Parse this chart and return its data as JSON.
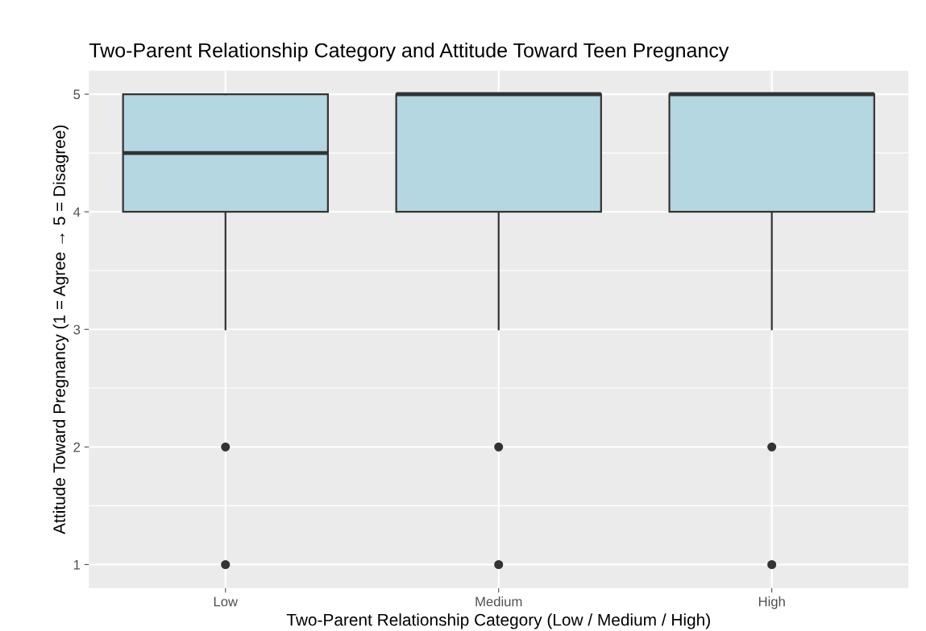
{
  "chart_data": {
    "type": "box",
    "title": "Two-Parent Relationship Category and Attitude Toward Teen Pregnancy",
    "xlabel": "Two-Parent Relationship Category (Low / Medium / High)",
    "ylabel": "Attitude Toward Pregnancy (1 = Agree → 5 = Disagree)",
    "categories": [
      "Low",
      "Medium",
      "High"
    ],
    "color": "#b4d7e2",
    "boxes": [
      {
        "low": 3,
        "q1": 4,
        "median": 4.5,
        "q3": 5,
        "high": 5,
        "outliers": [
          2,
          1
        ]
      },
      {
        "low": 3,
        "q1": 4,
        "median": 5,
        "q3": 5,
        "high": 5,
        "outliers": [
          2,
          1
        ]
      },
      {
        "low": 3,
        "q1": 4,
        "median": 5,
        "q3": 5,
        "high": 5,
        "outliers": [
          2,
          1
        ]
      }
    ],
    "ylim": [
      0.8,
      5.2
    ],
    "yticks": [
      1,
      2,
      3,
      4,
      5
    ],
    "grid": true
  }
}
